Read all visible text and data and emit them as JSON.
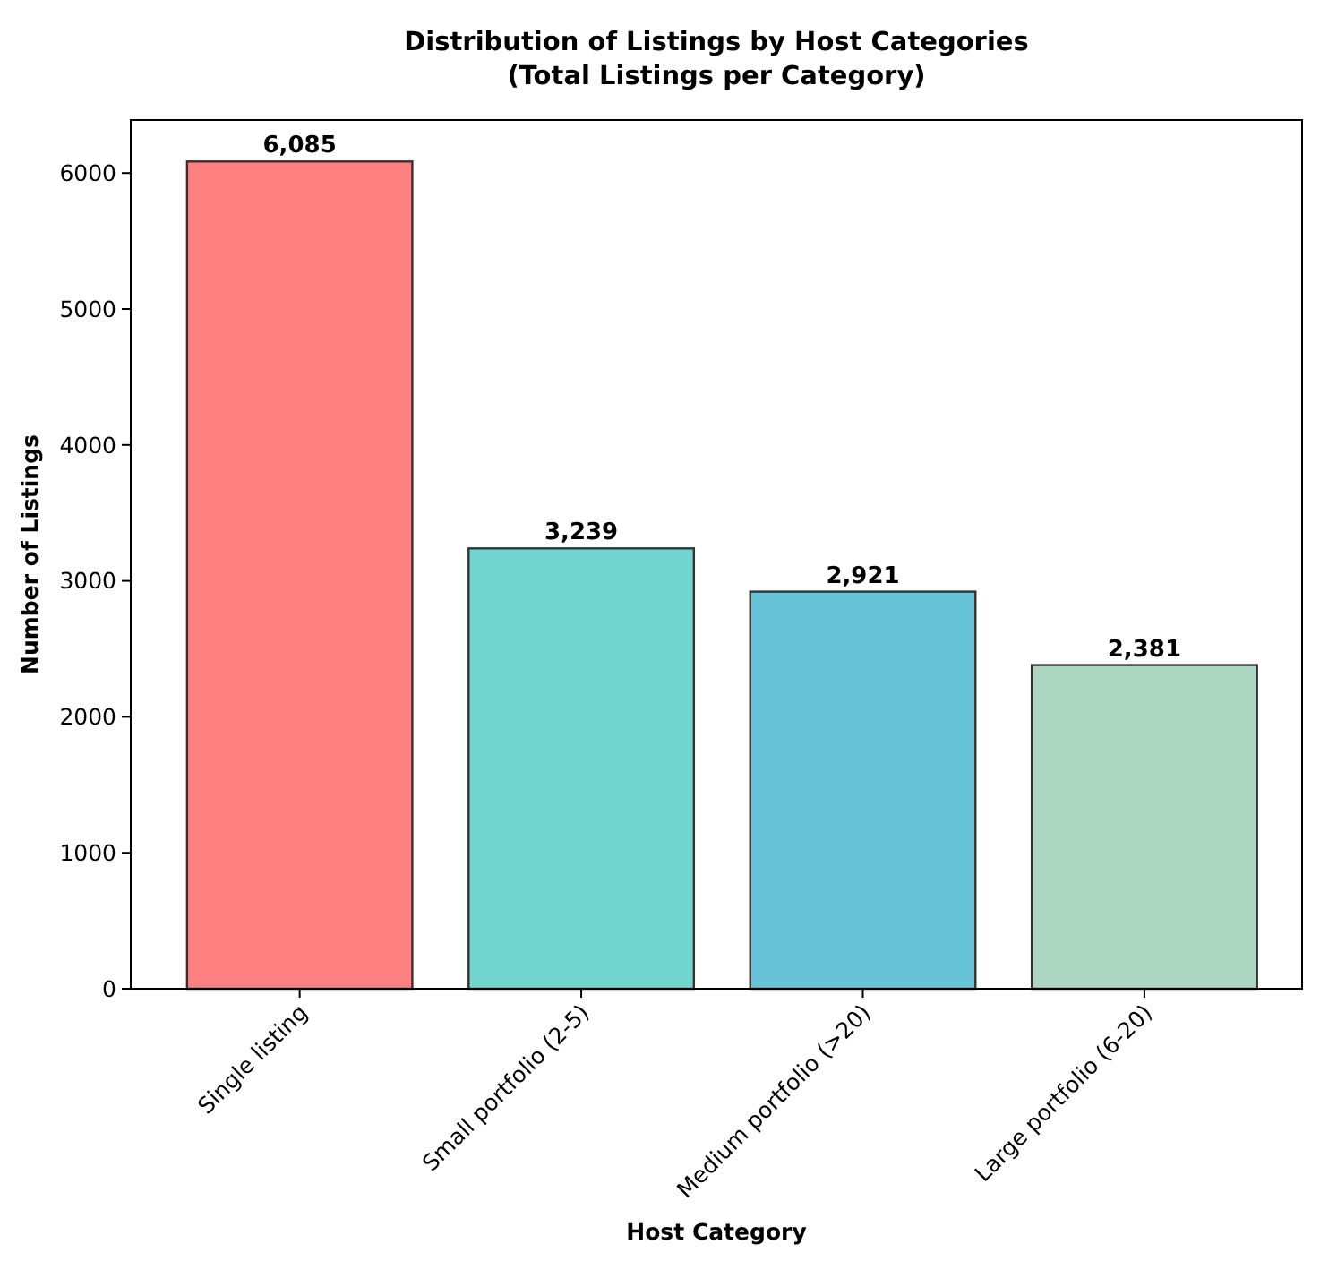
{
  "chart_data": {
    "type": "bar",
    "title": "Distribution of Listings by Host Categories\n(Total Listings per Category)",
    "xlabel": "Host Category",
    "ylabel": "Number of Listings",
    "categories": [
      "Single listing",
      "Small portfolio (2-5)",
      "Medium portfolio (>20)",
      "Large portfolio (6-20)"
    ],
    "values": [
      6085,
      3239,
      2921,
      2381
    ],
    "colors": [
      "#ff8080",
      "#70d6cf",
      "#67c4d8",
      "#acd6c2"
    ],
    "value_labels": [
      "6,085",
      "3,239",
      "2,921",
      "2,381"
    ],
    "ylim": [
      0,
      6390
    ],
    "yticks": [
      0,
      1000,
      2000,
      3000,
      4000,
      5000,
      6000
    ],
    "grid": false
  }
}
